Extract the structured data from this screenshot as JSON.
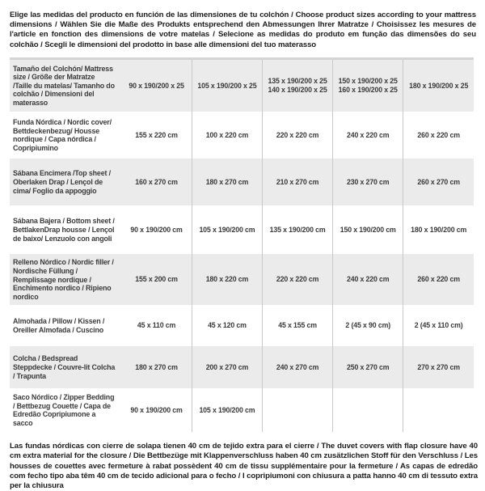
{
  "page": {
    "intro_text": "Elige las medidas del producto en función de las dimensiones de tu colchón / Choose product sizes according to your mattress dimensions / Wählen Sie die Maße des Produkts entsprechend den Abmessungen Ihrer Matratze / Choisissez les mesures de l'article en fonction des dimensions de votre matelas / Selecione as medidas do produto em função das dimensões do seu colchão / Scegli le dimensioni del prodotto in base alle dimensioni del tuo materasso",
    "footer_text": "Las fundas nórdicas con cierre de solapa tienen 40 cm de tejido extra para el cierre / The duvet covers with flap closure have 40 cm extra material for the closure / Die Bettbezüge mit Klappenverschluss haben 40 cm zusätzlichen Stoff für den Verschluss / Les housses de couettes avec fermeture à rabat possèdent 40 cm de tissu supplémentaire pour la fermeture / As capas de edredão com fecho tipo aba têm 40 cm de tecido adicional para o fecho / I copripiumoni con chiusura a patta hanno 40 cm di tessuto extra per la chiusura"
  },
  "colors": {
    "row_shade": "#ebebeb",
    "divider": "#c9c9c9",
    "table_top_border": "#d4d4d4",
    "text": "#3a3a3a"
  },
  "table": {
    "rows": [
      {
        "label": "Tamaño del Colchón/ Mattress size / Größe der Matratze /Taille du matelas/ Tamanho do colchão / Dimensioni del materasso",
        "values": [
          "90 x 190/200 x 25",
          "105 x 190/200 x 25",
          "135 x 190/200 x 25\n140 x 190/200 x 25",
          "150 x 190/200 x 25\n160 x 190/200 x 25",
          "180 x 190/200 x 25"
        ]
      },
      {
        "label": "Funda Nórdica /  Nordic cover/ Bettdeckenbezug/ Housse nordique  / Capa nórdica / Copripiumino",
        "values": [
          "155 x 220 cm",
          "100 x 220 cm",
          "220 x 220 cm",
          "240 x 220 cm",
          "260 x 220 cm"
        ]
      },
      {
        "label": "Sábana Encimera /Top sheet / Oberlaken Drap / Lençol de cima/ Foglio da appoggio",
        "values": [
          "160 x 270 cm",
          "180 x 270 cm",
          "210 x 270 cm",
          "230 x 270 cm",
          "260 x 270 cm"
        ]
      },
      {
        "label": "Sábana Bajera / Bottom sheet / BettlakenDrap housse / Lençol de baixo/ Lenzuolo con angoli",
        "values": [
          "90 x 190/200 cm",
          "105 x 190/200 cm",
          "135 x 190/200 cm",
          "150 x 190/200 cm",
          "180 x 190/200 cm"
        ]
      },
      {
        "label": "Relleno Nórdico / Nordic filler / Nordische Füllung / Remplissage nordique / Enchimento nordico / Ripieno nordico",
        "values": [
          "155 x 200 cm",
          "180 x 220 cm",
          "220 x 220 cm",
          "240 x 220 cm",
          "260 x 220 cm"
        ]
      },
      {
        "label": "Almohada  / Pillow / Kissen / Oreiller Almofada / Cuscino",
        "values": [
          "45 x 110 cm",
          "45 x 120 cm",
          "45 x 155 cm",
          "2 (45 x 90 cm)",
          "2 (45 x 110 cm)"
        ]
      },
      {
        "label": "Colcha / Bedspread Steppdecke / Couvre-lit Colcha / Trapunta",
        "values": [
          "180 x 270 cm",
          "200 x 270 cm",
          "240 x 270 cm",
          "250 x 270 cm",
          "270 x 270 cm"
        ]
      },
      {
        "label": "Saco Nórdico / Zipper Bedding / Bettbezug Couette  / Capa de Edredão Copripiumone a sacco",
        "values": [
          "90 x 190/200 cm",
          "105 x 190/200 cm",
          "",
          "",
          ""
        ]
      }
    ]
  }
}
